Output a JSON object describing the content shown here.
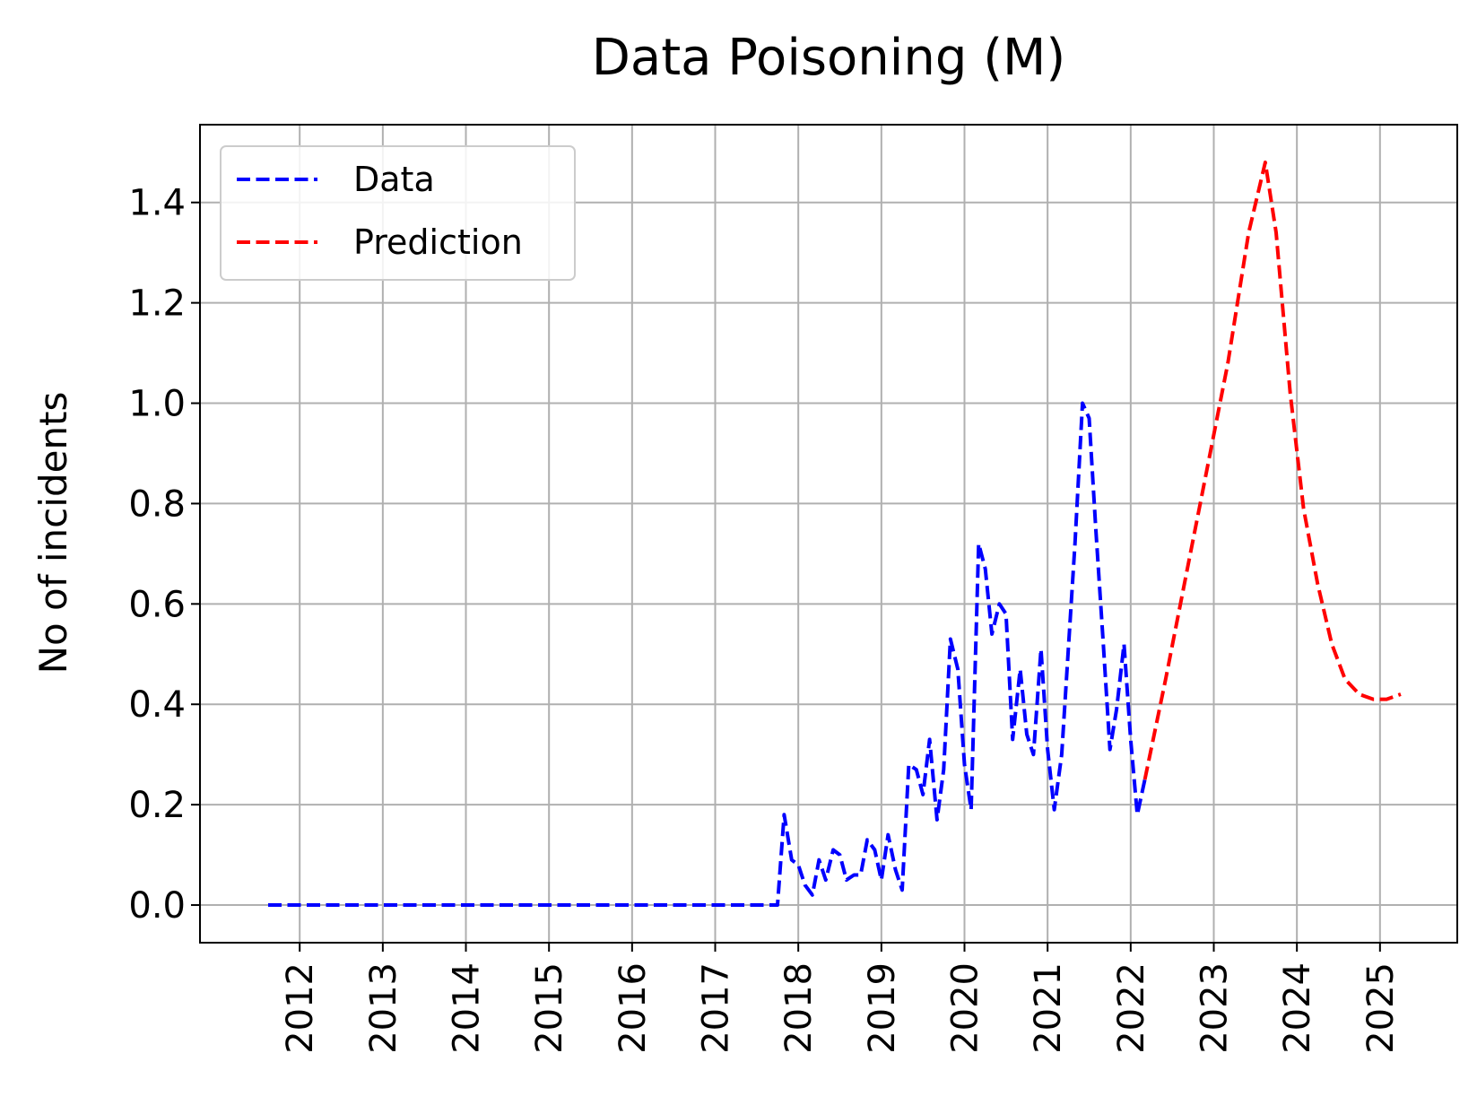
{
  "chart_data": {
    "type": "line",
    "title": "Data Poisoning (M)",
    "xlabel": "",
    "ylabel": "No of incidents",
    "xlim": [
      2010.8,
      2025.93
    ],
    "ylim": [
      -0.075,
      1.555
    ],
    "grid": true,
    "legend_position": "top-left",
    "x_ticks": [
      "2012",
      "2013",
      "2014",
      "2015",
      "2016",
      "2017",
      "2018",
      "2019",
      "2020",
      "2021",
      "2022",
      "2023",
      "2024",
      "2025"
    ],
    "y_ticks": [
      "0.0",
      "0.2",
      "0.4",
      "0.6",
      "0.8",
      "1.0",
      "1.2",
      "1.4"
    ],
    "series": [
      {
        "name": "Data",
        "color": "#0000ff",
        "dash": "dashed",
        "points": [
          [
            2011.62,
            0.0
          ],
          [
            2017.75,
            0.0
          ],
          [
            2017.83,
            0.18
          ],
          [
            2017.92,
            0.09
          ],
          [
            2018.0,
            0.08
          ],
          [
            2018.08,
            0.04
          ],
          [
            2018.17,
            0.02
          ],
          [
            2018.25,
            0.09
          ],
          [
            2018.33,
            0.05
          ],
          [
            2018.42,
            0.11
          ],
          [
            2018.5,
            0.1
          ],
          [
            2018.58,
            0.05
          ],
          [
            2018.67,
            0.06
          ],
          [
            2018.75,
            0.06
          ],
          [
            2018.83,
            0.13
          ],
          [
            2018.92,
            0.11
          ],
          [
            2019.0,
            0.05
          ],
          [
            2019.08,
            0.14
          ],
          [
            2019.17,
            0.07
          ],
          [
            2019.25,
            0.03
          ],
          [
            2019.33,
            0.28
          ],
          [
            2019.42,
            0.27
          ],
          [
            2019.5,
            0.22
          ],
          [
            2019.58,
            0.33
          ],
          [
            2019.67,
            0.17
          ],
          [
            2019.75,
            0.27
          ],
          [
            2019.83,
            0.53
          ],
          [
            2019.92,
            0.47
          ],
          [
            2020.0,
            0.28
          ],
          [
            2020.08,
            0.19
          ],
          [
            2020.17,
            0.72
          ],
          [
            2020.25,
            0.67
          ],
          [
            2020.33,
            0.54
          ],
          [
            2020.42,
            0.6
          ],
          [
            2020.5,
            0.58
          ],
          [
            2020.58,
            0.33
          ],
          [
            2020.67,
            0.47
          ],
          [
            2020.75,
            0.34
          ],
          [
            2020.83,
            0.3
          ],
          [
            2020.92,
            0.51
          ],
          [
            2021.0,
            0.31
          ],
          [
            2021.08,
            0.19
          ],
          [
            2021.17,
            0.3
          ],
          [
            2021.33,
            0.72
          ],
          [
            2021.42,
            1.0
          ],
          [
            2021.5,
            0.97
          ],
          [
            2021.58,
            0.75
          ],
          [
            2021.67,
            0.52
          ],
          [
            2021.75,
            0.31
          ],
          [
            2021.83,
            0.39
          ],
          [
            2021.92,
            0.52
          ],
          [
            2022.0,
            0.33
          ],
          [
            2022.08,
            0.18
          ],
          [
            2022.17,
            0.25
          ]
        ]
      },
      {
        "name": "Prediction",
        "color": "#ff0000",
        "dash": "dashed",
        "points": [
          [
            2022.17,
            0.25
          ],
          [
            2022.42,
            0.45
          ],
          [
            2022.67,
            0.66
          ],
          [
            2022.92,
            0.87
          ],
          [
            2023.17,
            1.08
          ],
          [
            2023.42,
            1.34
          ],
          [
            2023.62,
            1.48
          ],
          [
            2023.75,
            1.34
          ],
          [
            2023.92,
            1.02
          ],
          [
            2024.08,
            0.79
          ],
          [
            2024.25,
            0.64
          ],
          [
            2024.42,
            0.52
          ],
          [
            2024.58,
            0.45
          ],
          [
            2024.75,
            0.42
          ],
          [
            2024.92,
            0.41
          ],
          [
            2025.08,
            0.41
          ],
          [
            2025.25,
            0.42
          ]
        ]
      }
    ]
  }
}
